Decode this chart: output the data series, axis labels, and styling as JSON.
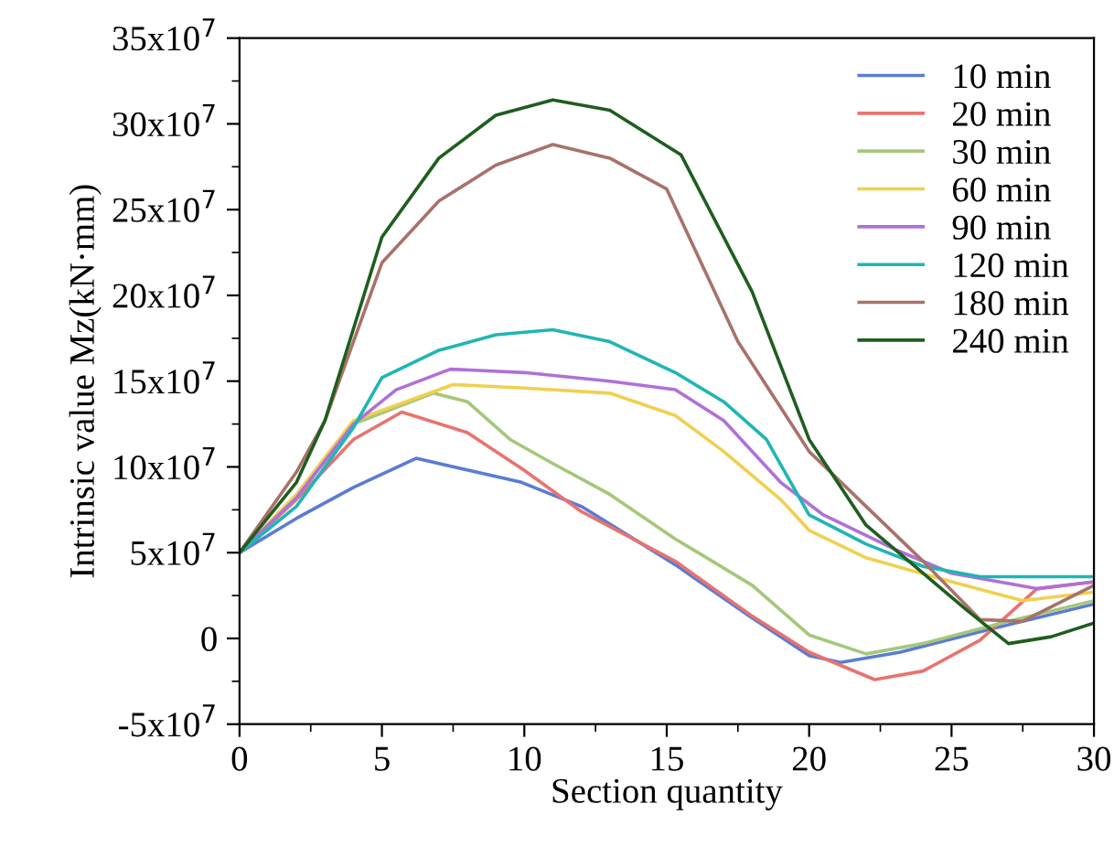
{
  "chart_data": {
    "type": "line",
    "xlabel": "Section quantity",
    "ylabel": "Intrinsic value Mz(kN·mm)",
    "xlim": [
      0,
      30
    ],
    "xticks": [
      0,
      5,
      10,
      15,
      20,
      25,
      30
    ],
    "ylim": [
      -50000000.0,
      350000000.0
    ],
    "yticks": [
      {
        "value": -50000000.0,
        "label": "-5x10$^{7}$"
      },
      {
        "value": 0,
        "label": "0"
      },
      {
        "value": 50000000.0,
        "label": "5x10$^{7}$"
      },
      {
        "value": 100000000.0,
        "label": "10x10$^{7}$"
      },
      {
        "value": 150000000.0,
        "label": "15x10$^{7}$"
      },
      {
        "value": 200000000.0,
        "label": "20x10$^{7}$"
      },
      {
        "value": 250000000.0,
        "label": "25x10$^{7}$"
      },
      {
        "value": 300000000.0,
        "label": "30x10$^{7}$"
      },
      {
        "value": 350000000.0,
        "label": "35x10$^{7}$"
      }
    ],
    "legend": "top right",
    "grid": false,
    "marker": "none",
    "line_style": "solid",
    "series": [
      {
        "name": "10 min",
        "color": "#5b7bd5",
        "x": [
          0,
          2,
          4,
          6.2,
          9.9,
          12,
          15.3,
          17.9,
          20,
          21.1,
          23.2,
          26.5,
          30
        ],
        "values": [
          50000000.0,
          70000000.0,
          88000000.0,
          105000000.0,
          91000000.0,
          77000000.0,
          43000000.0,
          13000000.0,
          -10000000.0,
          -14000000.0,
          -8000000.0,
          6000000.0,
          20000000.0
        ]
      },
      {
        "name": "20 min",
        "color": "#e8736f",
        "x": [
          0,
          2,
          4,
          5.7,
          8,
          10,
          12,
          15.3,
          18,
          20,
          22.3,
          24,
          26,
          28,
          30
        ],
        "values": [
          50000000.0,
          81000000.0,
          116000000.0,
          132000000.0,
          120000000.0,
          98000000.0,
          74000000.0,
          45000000.0,
          13000000.0,
          -8000000.0,
          -24000000.0,
          -19000000.0,
          -1000000.0,
          29000000.0,
          33000000.0
        ]
      },
      {
        "name": "30 min",
        "color": "#a6c77a",
        "x": [
          0,
          2,
          4,
          6.8,
          8,
          9.5,
          11,
          13,
          15.3,
          18,
          20,
          22,
          24,
          27,
          30
        ],
        "values": [
          50000000.0,
          82000000.0,
          125000000.0,
          143000000.0,
          138000000.0,
          116000000.0,
          102000000.0,
          84000000.0,
          58000000.0,
          31000000.0,
          2000000.0,
          -9000000.0,
          -3000000.0,
          10000000.0,
          22000000.0
        ]
      },
      {
        "name": "60 min",
        "color": "#f0d050",
        "x": [
          0,
          2,
          4,
          7.5,
          10,
          13,
          15.3,
          17,
          19,
          20,
          22,
          25,
          27.5,
          30
        ],
        "values": [
          50000000.0,
          84000000.0,
          127000000.0,
          148000000.0,
          146000000.0,
          143000000.0,
          130000000.0,
          109000000.0,
          81000000.0,
          63000000.0,
          47000000.0,
          33000000.0,
          22000000.0,
          27000000.0
        ]
      },
      {
        "name": "90 min",
        "color": "#b070d8",
        "x": [
          0,
          2,
          4,
          5.5,
          7.4,
          10,
          13,
          15.3,
          17,
          19,
          20.5,
          23,
          25,
          28,
          30
        ],
        "values": [
          50000000.0,
          82000000.0,
          125000000.0,
          145000000.0,
          157000000.0,
          155000000.0,
          150000000.0,
          145000000.0,
          127000000.0,
          91000000.0,
          72000000.0,
          52000000.0,
          38000000.0,
          29000000.0,
          33000000.0
        ]
      },
      {
        "name": "120 min",
        "color": "#20b5b5",
        "x": [
          0,
          2,
          4,
          5,
          7,
          9,
          11,
          13,
          15.3,
          17,
          18.5,
          20,
          22,
          24,
          26,
          30
        ],
        "values": [
          50000000.0,
          77000000.0,
          123000000.0,
          152000000.0,
          168000000.0,
          177000000.0,
          180000000.0,
          173000000.0,
          155000000.0,
          138000000.0,
          116000000.0,
          72000000.0,
          55000000.0,
          42000000.0,
          36000000.0,
          36000000.0
        ]
      },
      {
        "name": "180 min",
        "color": "#a8726a",
        "x": [
          0,
          2,
          3,
          5,
          7,
          9,
          11,
          13,
          15,
          17.5,
          20,
          22,
          24,
          26,
          27.5,
          30
        ],
        "values": [
          50000000.0,
          97000000.0,
          127000000.0,
          219000000.0,
          255000000.0,
          276000000.0,
          288000000.0,
          280000000.0,
          262000000.0,
          173000000.0,
          109000000.0,
          77000000.0,
          45000000.0,
          11000000.0,
          10000000.0,
          31000000.0
        ]
      },
      {
        "name": "240 min",
        "color": "#1e5e1e",
        "x": [
          0,
          2,
          3,
          5,
          7,
          9,
          11,
          13,
          15.5,
          18,
          20,
          22,
          24,
          25.5,
          27,
          28.5,
          30
        ],
        "values": [
          50000000.0,
          91000000.0,
          127000000.0,
          234000000.0,
          280000000.0,
          305000000.0,
          314000000.0,
          308000000.0,
          282000000.0,
          202000000.0,
          116000000.0,
          66000000.0,
          38000000.0,
          17000000.0,
          -3000000.0,
          1000000.0,
          9000000.0
        ]
      }
    ]
  }
}
